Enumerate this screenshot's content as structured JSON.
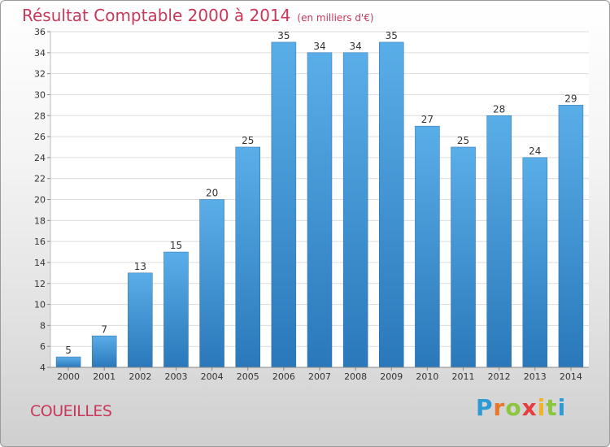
{
  "chart_data": {
    "type": "bar",
    "title": "Résultat Comptable 2000 à 2014",
    "subtitle": "(en milliers d'€)",
    "categories": [
      "2000",
      "2001",
      "2002",
      "2003",
      "2004",
      "2005",
      "2006",
      "2007",
      "2008",
      "2009",
      "2010",
      "2011",
      "2012",
      "2013",
      "2014"
    ],
    "values": [
      5,
      7,
      13,
      15,
      20,
      25,
      35,
      34,
      34,
      35,
      27,
      25,
      28,
      24,
      29
    ],
    "ylim": [
      4,
      36
    ],
    "yticks": [
      4,
      6,
      8,
      10,
      12,
      14,
      16,
      18,
      20,
      22,
      24,
      26,
      28,
      30,
      32,
      34,
      36
    ],
    "grid": true,
    "bar_color": "#3d95d8",
    "title_color": "#c8385a"
  },
  "commune": "COUEILLES",
  "logo": {
    "letters": [
      "P",
      "r",
      "o",
      "x",
      "i",
      "t",
      "i"
    ],
    "colors": [
      "#2e9ad6",
      "#e7762a",
      "#8cc63f",
      "#e63d3d",
      "#f0b323",
      "#8cc63f",
      "#2e9ad6"
    ]
  }
}
